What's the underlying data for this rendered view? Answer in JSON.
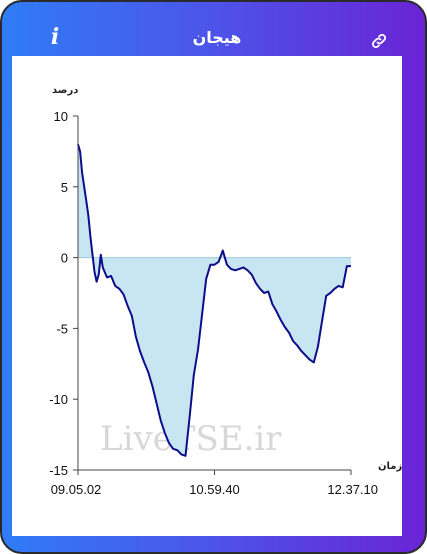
{
  "header": {
    "title": "هیجان",
    "info_icon": "info-icon",
    "link_icon": "link-icon"
  },
  "colors": {
    "gradient_start": "#2f7cf6",
    "gradient_end": "#6a24d6",
    "line": "#0d0d8c",
    "fill": "#c7e6f2"
  },
  "watermark": "LiveTSE.ir",
  "chart_data": {
    "type": "area",
    "ylabel": "درصد",
    "xlabel": "زمان",
    "ylim": [
      -15,
      10
    ],
    "yticks": [
      10,
      5,
      0,
      -5,
      -10,
      -15
    ],
    "xticks": [
      "09.05.02",
      "10.59.40",
      "12.37.10"
    ],
    "series": [
      {
        "values": [
          [
            0,
            8
          ],
          [
            0.5,
            7.5
          ],
          [
            1,
            6.0
          ],
          [
            1.5,
            5.0
          ],
          [
            2,
            4.0
          ],
          [
            2.5,
            3.0
          ],
          [
            3,
            1.5
          ],
          [
            3.5,
            0.2
          ],
          [
            4,
            -1.0
          ],
          [
            4.5,
            -1.7
          ],
          [
            5,
            -1.2
          ],
          [
            5.5,
            0.2
          ],
          [
            6,
            -0.7
          ],
          [
            7,
            -1.4
          ],
          [
            8,
            -1.3
          ],
          [
            9,
            -2.0
          ],
          [
            10,
            -2.2
          ],
          [
            11,
            -2.6
          ],
          [
            12,
            -3.4
          ],
          [
            13,
            -4.1
          ],
          [
            14,
            -5.6
          ],
          [
            15,
            -6.6
          ],
          [
            16,
            -7.4
          ],
          [
            17,
            -8.1
          ],
          [
            18,
            -9.1
          ],
          [
            19,
            -10.3
          ],
          [
            20,
            -11.5
          ],
          [
            21,
            -12.4
          ],
          [
            22,
            -13.1
          ],
          [
            23,
            -13.5
          ],
          [
            24,
            -13.6
          ],
          [
            25,
            -13.9
          ],
          [
            26,
            -14.0
          ],
          [
            27,
            -11.2
          ],
          [
            28,
            -8.3
          ],
          [
            29,
            -6.5
          ],
          [
            30,
            -4.0
          ],
          [
            31,
            -1.5
          ],
          [
            32,
            -0.5
          ],
          [
            33,
            -0.5
          ],
          [
            34,
            -0.3
          ],
          [
            35,
            0.5
          ],
          [
            36,
            -0.5
          ],
          [
            37,
            -0.8
          ],
          [
            38,
            -0.9
          ],
          [
            39,
            -0.8
          ],
          [
            40,
            -0.7
          ],
          [
            41,
            -0.9
          ],
          [
            42,
            -1.2
          ],
          [
            43,
            -1.8
          ],
          [
            44,
            -2.2
          ],
          [
            45,
            -2.5
          ],
          [
            46,
            -2.4
          ],
          [
            47,
            -3.3
          ],
          [
            48,
            -3.8
          ],
          [
            49,
            -4.4
          ],
          [
            50,
            -4.9
          ],
          [
            51,
            -5.3
          ],
          [
            52,
            -5.9
          ],
          [
            53,
            -6.2
          ],
          [
            54,
            -6.6
          ],
          [
            55,
            -6.9
          ],
          [
            56,
            -7.2
          ],
          [
            57,
            -7.4
          ],
          [
            58,
            -6.3
          ],
          [
            59,
            -4.5
          ],
          [
            60,
            -2.7
          ],
          [
            61,
            -2.5
          ],
          [
            62,
            -2.2
          ],
          [
            63,
            -2.0
          ],
          [
            64,
            -2.1
          ],
          [
            65,
            -0.6
          ],
          [
            66,
            -0.6
          ]
        ]
      }
    ],
    "xrange": [
      0,
      66
    ],
    "grid": false
  }
}
